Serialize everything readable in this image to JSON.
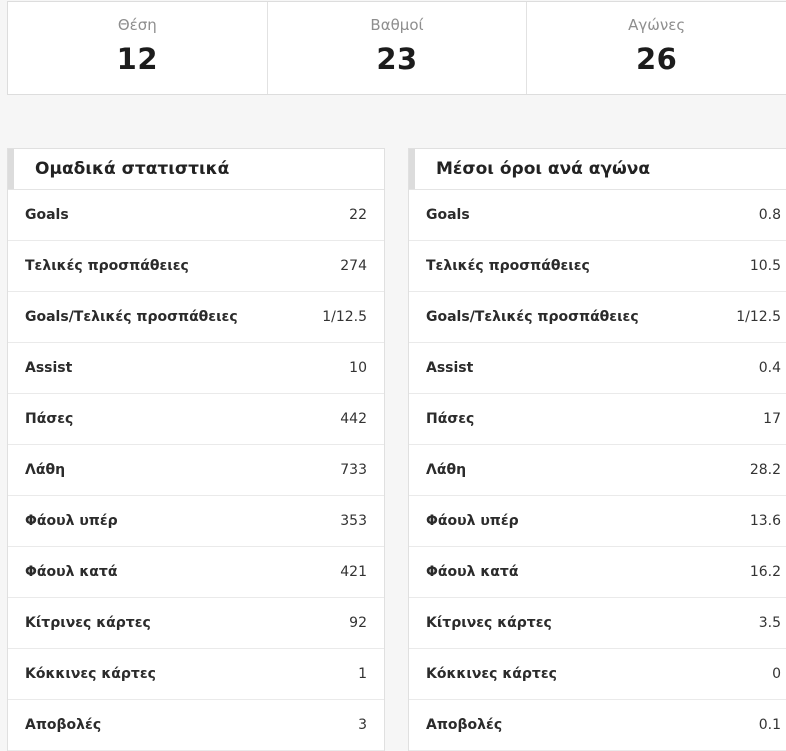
{
  "summary": {
    "cards": [
      {
        "label": "Θέση",
        "value": "12"
      },
      {
        "label": "Βαθμοί",
        "value": "23"
      },
      {
        "label": "Αγώνες",
        "value": "26"
      }
    ]
  },
  "tables": [
    {
      "title": "Ομαδικά στατιστικά",
      "rows": [
        {
          "label": "Goals",
          "value": "22"
        },
        {
          "label": "Τελικές προσπάθειες",
          "value": "274"
        },
        {
          "label": "Goals/Τελικές προσπάθειες",
          "value": "1/12.5"
        },
        {
          "label": "Assist",
          "value": "10"
        },
        {
          "label": "Πάσες",
          "value": "442"
        },
        {
          "label": "Λάθη",
          "value": "733"
        },
        {
          "label": "Φάουλ υπέρ",
          "value": "353"
        },
        {
          "label": "Φάουλ κατά",
          "value": "421"
        },
        {
          "label": "Κίτρινες κάρτες",
          "value": "92"
        },
        {
          "label": "Κόκκινες κάρτες",
          "value": "1"
        },
        {
          "label": "Αποβολές",
          "value": "3"
        }
      ]
    },
    {
      "title": "Μέσοι όροι ανά αγώνα",
      "rows": [
        {
          "label": "Goals",
          "value": "0.8"
        },
        {
          "label": "Τελικές προσπάθειες",
          "value": "10.5"
        },
        {
          "label": "Goals/Τελικές προσπάθειες",
          "value": "1/12.5"
        },
        {
          "label": "Assist",
          "value": "0.4"
        },
        {
          "label": "Πάσες",
          "value": "17"
        },
        {
          "label": "Λάθη",
          "value": "28.2"
        },
        {
          "label": "Φάουλ υπέρ",
          "value": "13.6"
        },
        {
          "label": "Φάουλ κατά",
          "value": "16.2"
        },
        {
          "label": "Κίτρινες κάρτες",
          "value": "3.5"
        },
        {
          "label": "Κόκκινες κάρτες",
          "value": "0"
        },
        {
          "label": "Αποβολές",
          "value": "0.1"
        }
      ]
    }
  ],
  "colors": {
    "page_background": "#f6f6f6",
    "panel_background": "#ffffff",
    "header_accent": "#dcdcdc",
    "row_separator": "#eaeaea",
    "muted_label": "#8e8e8e",
    "text_dark": "#1c1c1c"
  }
}
